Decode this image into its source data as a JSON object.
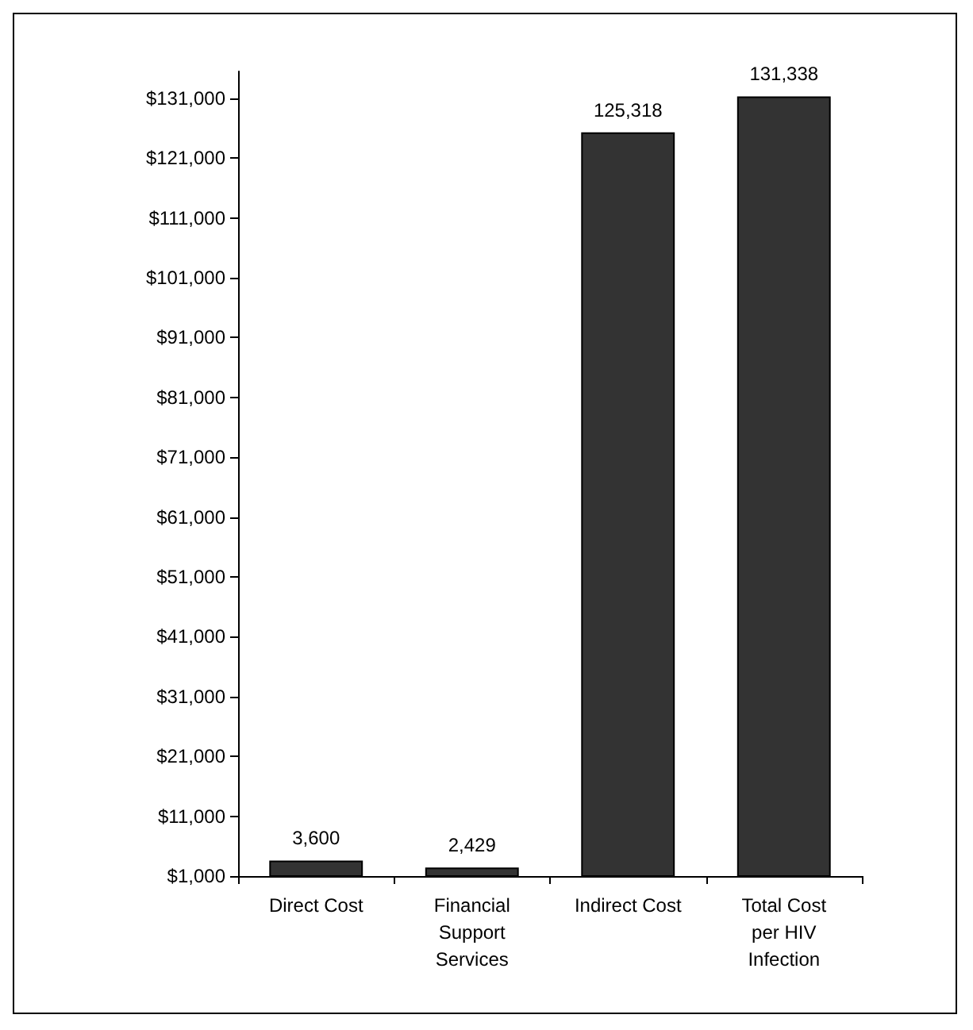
{
  "chart_data": {
    "type": "bar",
    "categories": [
      "Direct Cost",
      "Financial\nSupport\nServices",
      "Indirect Cost",
      "Total Cost\nper HIV\nInfection"
    ],
    "values": [
      3600,
      2429,
      125318,
      131338
    ],
    "color": "#333333",
    "value_labels": [
      "3,600",
      "2,429",
      "125,318",
      "131,338"
    ],
    "ylim": [
      1000,
      135500
    ],
    "yticks": [
      {
        "value": 1000,
        "label": "$1,000"
      },
      {
        "value": 11000,
        "label": "$11,000"
      },
      {
        "value": 21000,
        "label": "$21,000"
      },
      {
        "value": 31000,
        "label": "$31,000"
      },
      {
        "value": 41000,
        "label": "$41,000"
      },
      {
        "value": 51000,
        "label": "$51,000"
      },
      {
        "value": 61000,
        "label": "$61,000"
      },
      {
        "value": 71000,
        "label": "$71,000"
      },
      {
        "value": 81000,
        "label": "$81,000"
      },
      {
        "value": 91000,
        "label": "$91,000"
      },
      {
        "value": 101000,
        "label": "$101,000"
      },
      {
        "value": 111000,
        "label": "$111,000"
      },
      {
        "value": 121000,
        "label": "$121,000"
      },
      {
        "value": 131000,
        "label": "$131,000"
      }
    ],
    "grid": false
  }
}
